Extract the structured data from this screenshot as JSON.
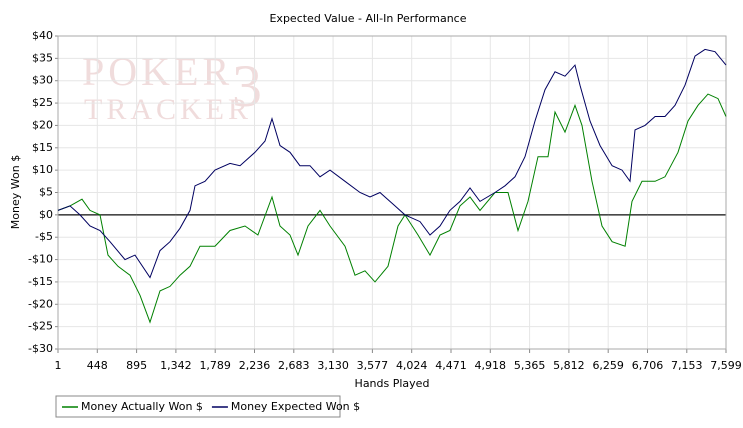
{
  "chart_data": {
    "type": "line",
    "title": "Expected Value - All-In Performance",
    "xlabel": "Hands Played",
    "ylabel": "Money Won $",
    "watermark": [
      "POKER",
      "TRACKER",
      "3"
    ],
    "xlim": [
      1,
      7599
    ],
    "xticks": [
      1,
      448,
      895,
      {
        "value": 1342,
        "label": "1,342"
      },
      {
        "value": 1789,
        "label": "1,789"
      },
      {
        "value": 2236,
        "label": "2,236"
      },
      {
        "value": 2683,
        "label": "2,683"
      },
      {
        "value": 3130,
        "label": "3,130"
      },
      {
        "value": 3577,
        "label": "3,577"
      },
      {
        "value": 4024,
        "label": "4,024"
      },
      {
        "value": 4471,
        "label": "4,471"
      },
      {
        "value": 4918,
        "label": "4,918"
      },
      {
        "value": 5365,
        "label": "5,365"
      },
      {
        "value": 5812,
        "label": "5,812"
      },
      {
        "value": 6259,
        "label": "6,259"
      },
      {
        "value": 6706,
        "label": "6,706"
      },
      {
        "value": 7153,
        "label": "7,153"
      },
      {
        "value": 7599,
        "label": "7,599"
      }
    ],
    "ylim": [
      -30,
      40
    ],
    "yticks": [
      {
        "value": -30,
        "label": "-$30"
      },
      {
        "value": -25,
        "label": "-$25"
      },
      {
        "value": -20,
        "label": "-$20"
      },
      {
        "value": -15,
        "label": "-$15"
      },
      {
        "value": -10,
        "label": "-$10"
      },
      {
        "value": -5,
        "label": "-$5"
      },
      {
        "value": 0,
        "label": "$0"
      },
      {
        "value": 5,
        "label": "$5"
      },
      {
        "value": 10,
        "label": "$10"
      },
      {
        "value": 15,
        "label": "$15"
      },
      {
        "value": 20,
        "label": "$20"
      },
      {
        "value": 25,
        "label": "$25"
      },
      {
        "value": 30,
        "label": "$30"
      },
      {
        "value": 35,
        "label": "$35"
      },
      {
        "value": 40,
        "label": "$40"
      }
    ],
    "grid": true,
    "legend": "bottom-left",
    "series": [
      {
        "name": "Money Actually Won $",
        "color": "#008000",
        "x": [
          1,
          137,
          274,
          365,
          479,
          570,
          683,
          820,
          934,
          1047,
          1161,
          1275,
          1389,
          1502,
          1616,
          1787,
          1957,
          2128,
          2275,
          2435,
          2526,
          2640,
          2731,
          2845,
          2981,
          3095,
          3265,
          3379,
          3493,
          3607,
          3755,
          3868,
          3948,
          4096,
          4232,
          4346,
          4459,
          4573,
          4687,
          4801,
          4971,
          5119,
          5233,
          5347,
          5461,
          5574,
          5654,
          5768,
          5882,
          5961,
          6075,
          6189,
          6303,
          6451,
          6530,
          6644,
          6792,
          6905,
          7053,
          7167,
          7280,
          7394,
          7508,
          7599
        ],
        "values": [
          1,
          2,
          3.5,
          1,
          0,
          -9,
          -11.5,
          -13.5,
          -18,
          -24,
          -17,
          -16,
          -13.5,
          -11.5,
          -7,
          -7,
          -3.5,
          -2.5,
          -4.5,
          4,
          -2.5,
          -4.5,
          -9,
          -2.5,
          1,
          -2.5,
          -7,
          -13.5,
          -12.5,
          -15,
          -11.5,
          -2.5,
          0,
          -4.5,
          -9,
          -4.5,
          -3.5,
          2,
          4,
          1,
          5,
          5,
          -3.5,
          3,
          13,
          13,
          23,
          18.5,
          24.5,
          20,
          7.5,
          -2.5,
          -6,
          -7,
          3,
          7.5,
          7.5,
          8.5,
          14,
          21,
          24.5,
          27,
          26,
          22
        ]
      },
      {
        "name": "Money Expected Won $",
        "color": "#000060",
        "x": [
          1,
          137,
          251,
          365,
          479,
          592,
          763,
          877,
          1047,
          1161,
          1275,
          1389,
          1502,
          1559,
          1673,
          1787,
          1957,
          2071,
          2242,
          2355,
          2435,
          2526,
          2640,
          2753,
          2867,
          2981,
          3095,
          3265,
          3436,
          3550,
          3663,
          3834,
          3948,
          4118,
          4232,
          4346,
          4459,
          4573,
          4687,
          4801,
          4971,
          5085,
          5199,
          5313,
          5426,
          5540,
          5654,
          5768,
          5882,
          5938,
          6052,
          6166,
          6303,
          6416,
          6507,
          6564,
          6678,
          6792,
          6905,
          7019,
          7133,
          7246,
          7360,
          7474,
          7599
        ],
        "values": [
          1,
          2,
          0,
          -2.5,
          -3.5,
          -6,
          -10,
          -9,
          -14,
          -8,
          -6,
          -3,
          1,
          6.5,
          7.5,
          10,
          11.5,
          11,
          14,
          16.5,
          21.5,
          15.5,
          14,
          11,
          11,
          8.5,
          10,
          7.5,
          5,
          4,
          5,
          2,
          0,
          -1.5,
          -4.5,
          -2.5,
          1,
          3,
          6,
          3,
          5,
          6.5,
          8.5,
          13,
          21,
          28,
          32,
          31,
          33.5,
          29,
          21,
          15.5,
          11,
          10,
          7.5,
          19,
          20,
          22,
          22,
          24.5,
          29,
          35.5,
          37,
          36.5,
          33.5
        ]
      }
    ]
  }
}
